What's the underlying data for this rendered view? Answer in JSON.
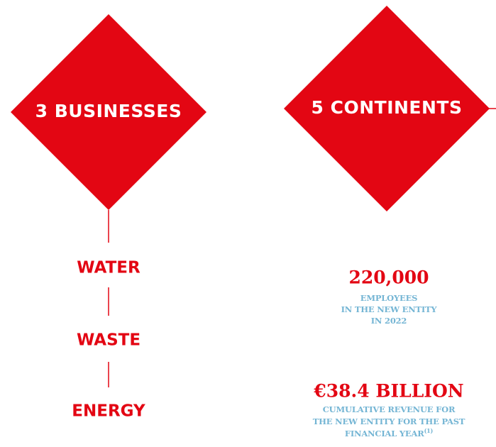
{
  "left": {
    "title": "3 BUSINESSES",
    "items": [
      "WATER",
      "WASTE",
      "ENERGY"
    ]
  },
  "right": {
    "title": "5 CONTINENTS",
    "stats": [
      {
        "value": "220,000",
        "lines": [
          "EMPLOYEES",
          "IN THE NEW ENTITY",
          "IN 2022"
        ]
      },
      {
        "value": "€38.4 BILLION",
        "lines": [
          "CUMULATIVE REVENUE FOR",
          "THE NEW ENTITY FOR THE PAST",
          "FINANCIAL YEAR"
        ],
        "note": "(1)"
      }
    ]
  }
}
